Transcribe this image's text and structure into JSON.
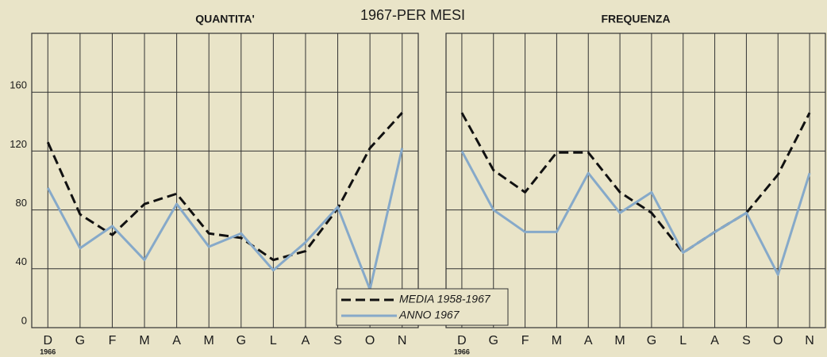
{
  "chart_data": {
    "type": "line",
    "title": "1967-PER MESI",
    "categories": [
      "D",
      "G",
      "F",
      "M",
      "A",
      "M",
      "G",
      "L",
      "A",
      "S",
      "O",
      "N"
    ],
    "annotation": "1966",
    "ylim": [
      0,
      200
    ],
    "yticks": [
      0,
      40,
      80,
      120,
      160
    ],
    "grid": true,
    "panels": [
      {
        "title": "QUANTITA'",
        "series": [
          {
            "name": "MEDIA 1958-1967",
            "color": "#111111",
            "style": "dashed",
            "values": [
              126,
              77,
              63,
              84,
              91,
              64,
              61,
              46,
              52,
              81,
              122,
              146
            ]
          },
          {
            "name": "ANNO 1967",
            "color": "#86a9c9",
            "style": "solid",
            "values": [
              95,
              54,
              69,
              46,
              84,
              55,
              64,
              39,
              58,
              82,
              26,
              122
            ]
          }
        ]
      },
      {
        "title": "FREQUENZA",
        "series": [
          {
            "name": "MEDIA 1958-1967",
            "color": "#111111",
            "style": "dashed",
            "values": [
              146,
              107,
              92,
              119,
              119,
              92,
              78,
              51,
              65,
              78,
              104,
              146
            ]
          },
          {
            "name": "ANNO 1967",
            "color": "#86a9c9",
            "style": "solid",
            "values": [
              120,
              80,
              65,
              65,
              105,
              78,
              92,
              51,
              65,
              78,
              36,
              105
            ]
          }
        ]
      }
    ]
  }
}
